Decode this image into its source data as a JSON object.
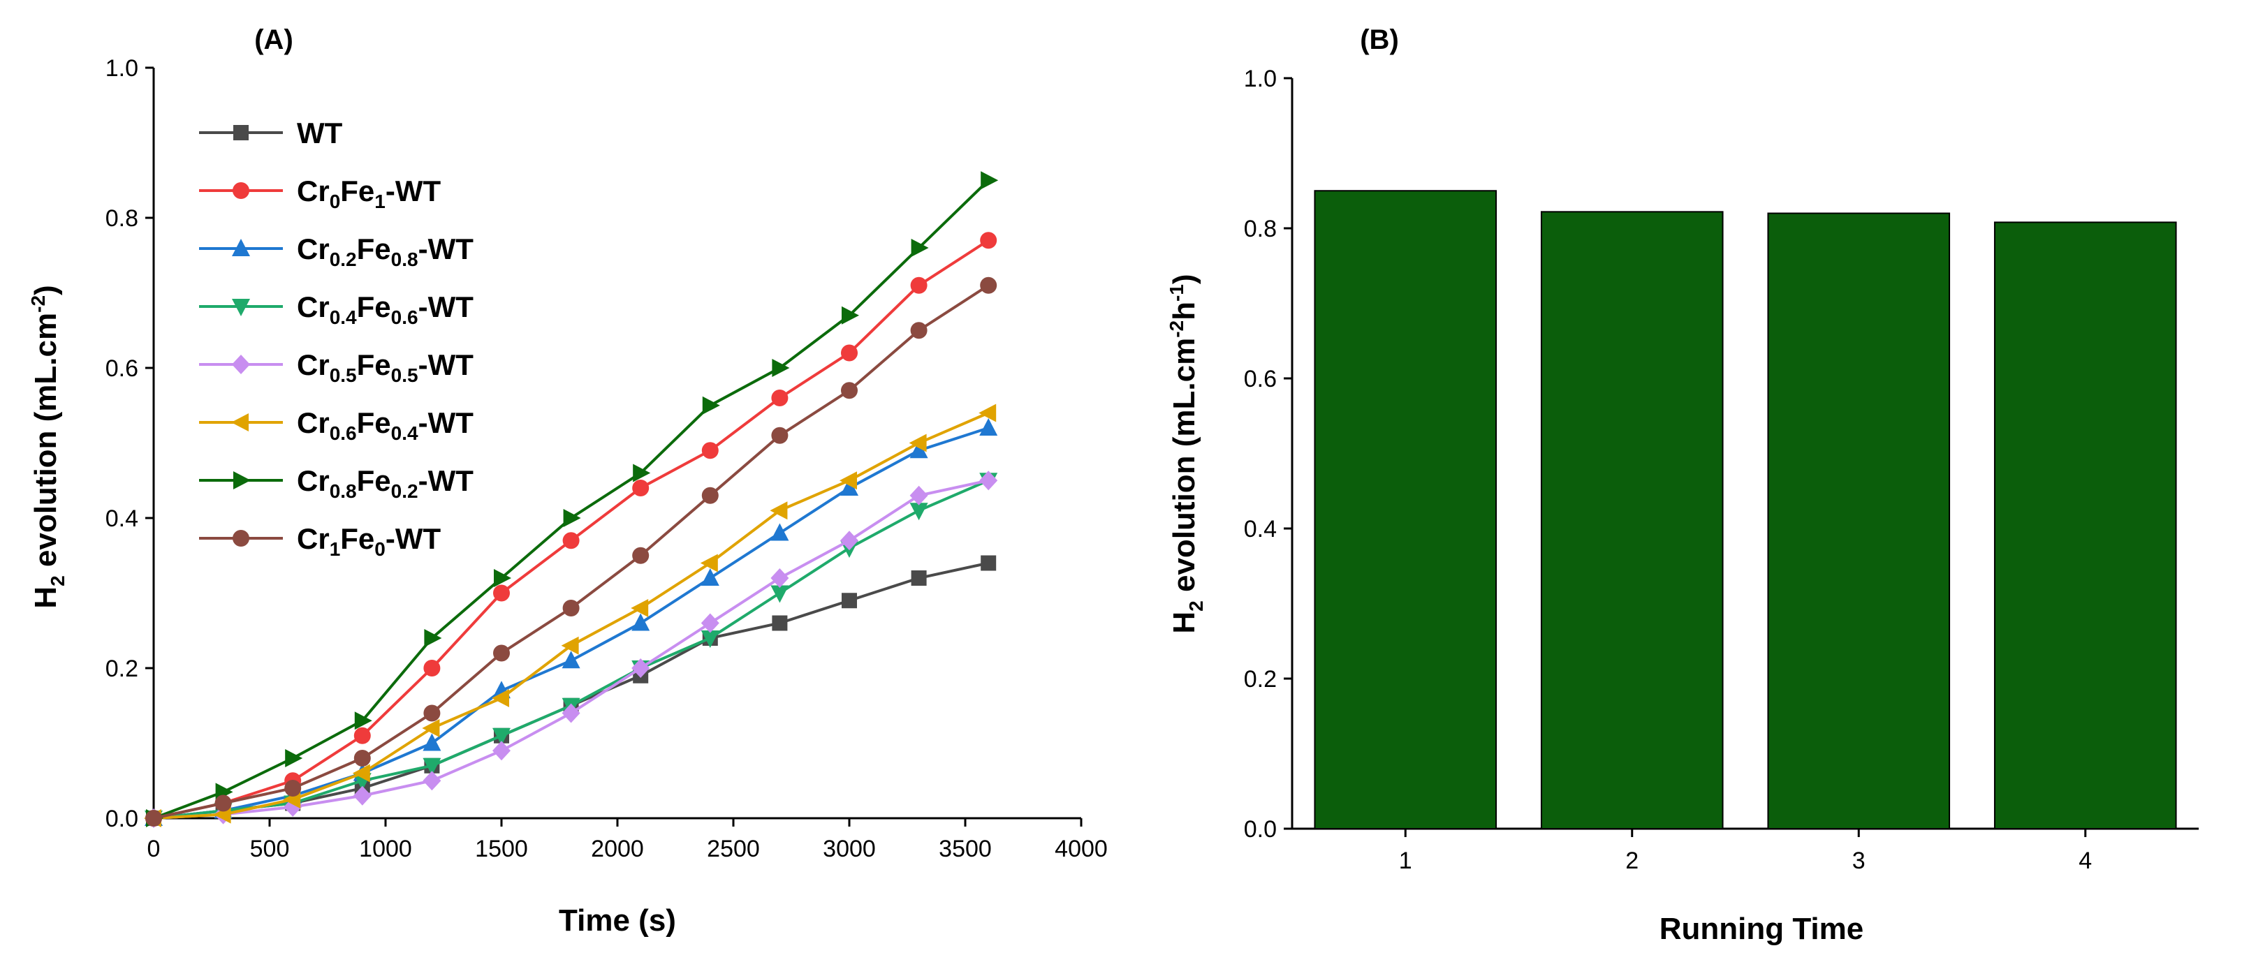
{
  "chart_data": [
    {
      "panel": "(A)",
      "type": "line",
      "xlabel": "Time (s)",
      "ylabel": {
        "base": "H",
        "sub": "2",
        "rest": " evolution (mL.cm",
        "sup": "-2",
        "close": ")"
      },
      "xlim": [
        0,
        4000
      ],
      "ylim": [
        0,
        1.0
      ],
      "xticks": [
        0,
        500,
        1000,
        1500,
        2000,
        2500,
        3000,
        3500,
        4000
      ],
      "yticks": [
        0.0,
        0.2,
        0.4,
        0.6,
        0.8,
        1.0
      ],
      "ytick_labels": [
        "0.0",
        "0.2",
        "0.4",
        "0.6",
        "0.8",
        "1.0"
      ],
      "x": [
        0,
        300,
        600,
        900,
        1200,
        1500,
        1800,
        2100,
        2400,
        2700,
        3000,
        3300,
        3600
      ],
      "series": [
        {
          "name": "WT",
          "parts": [
            [
              "WT",
              ""
            ]
          ],
          "color": "#4a4a4a",
          "marker": "square",
          "values": [
            0,
            0.01,
            0.02,
            0.04,
            0.07,
            0.11,
            0.15,
            0.19,
            0.24,
            0.26,
            0.29,
            0.32,
            0.34
          ]
        },
        {
          "name": "Cr0Fe1-WT",
          "parts": [
            [
              "Cr",
              "0"
            ],
            [
              "Fe",
              "1"
            ],
            [
              "-WT",
              ""
            ]
          ],
          "color": "#ef3b3b",
          "marker": "circle",
          "values": [
            0,
            0.02,
            0.05,
            0.11,
            0.2,
            0.3,
            0.37,
            0.44,
            0.49,
            0.56,
            0.62,
            0.71,
            0.77
          ]
        },
        {
          "name": "Cr0.2Fe0.8-WT",
          "parts": [
            [
              "Cr",
              "0.2"
            ],
            [
              "Fe",
              "0.8"
            ],
            [
              "-WT",
              ""
            ]
          ],
          "color": "#1f78d1",
          "marker": "triangle-up",
          "values": [
            0,
            0.01,
            0.03,
            0.06,
            0.1,
            0.17,
            0.21,
            0.26,
            0.32,
            0.38,
            0.44,
            0.49,
            0.52
          ]
        },
        {
          "name": "Cr0.4Fe0.6-WT",
          "parts": [
            [
              "Cr",
              "0.4"
            ],
            [
              "Fe",
              "0.6"
            ],
            [
              "-WT",
              ""
            ]
          ],
          "color": "#1faa6b",
          "marker": "triangle-down",
          "values": [
            0,
            0.01,
            0.02,
            0.05,
            0.07,
            0.11,
            0.15,
            0.2,
            0.24,
            0.3,
            0.36,
            0.41,
            0.45
          ]
        },
        {
          "name": "Cr0.5Fe0.5-WT",
          "parts": [
            [
              "Cr",
              "0.5"
            ],
            [
              "Fe",
              "0.5"
            ],
            [
              "-WT",
              ""
            ]
          ],
          "color": "#c88ef0",
          "marker": "diamond",
          "values": [
            0,
            0.005,
            0.015,
            0.03,
            0.05,
            0.09,
            0.14,
            0.2,
            0.26,
            0.32,
            0.37,
            0.43,
            0.45
          ]
        },
        {
          "name": "Cr0.6Fe0.4-WT",
          "parts": [
            [
              "Cr",
              "0.6"
            ],
            [
              "Fe",
              "0.4"
            ],
            [
              "-WT",
              ""
            ]
          ],
          "color": "#e0a300",
          "marker": "triangle-left",
          "values": [
            0,
            0.005,
            0.025,
            0.06,
            0.12,
            0.16,
            0.23,
            0.28,
            0.34,
            0.41,
            0.45,
            0.5,
            0.54
          ]
        },
        {
          "name": "Cr0.8Fe0.2-WT",
          "parts": [
            [
              "Cr",
              "0.8"
            ],
            [
              "Fe",
              "0.2"
            ],
            [
              "-WT",
              ""
            ]
          ],
          "color": "#0b6b0b",
          "marker": "triangle-right",
          "values": [
            0,
            0.035,
            0.08,
            0.13,
            0.24,
            0.32,
            0.4,
            0.46,
            0.55,
            0.6,
            0.67,
            0.76,
            0.85
          ]
        },
        {
          "name": "Cr1Fe0-WT",
          "parts": [
            [
              "Cr",
              "1"
            ],
            [
              "Fe",
              "0"
            ],
            [
              "-WT",
              ""
            ]
          ],
          "color": "#8b4a40",
          "marker": "circle",
          "values": [
            0,
            0.02,
            0.04,
            0.08,
            0.14,
            0.22,
            0.28,
            0.35,
            0.43,
            0.51,
            0.57,
            0.65,
            0.71
          ]
        }
      ]
    },
    {
      "panel": "(B)",
      "type": "bar",
      "xlabel": "Running Time",
      "ylabel": {
        "base": "H",
        "sub": "2",
        "rest": " evolution (mL.cm",
        "sup": "-2",
        "mid": "h",
        "sup2": "-1",
        "close": ")"
      },
      "ylim": [
        0,
        1.0
      ],
      "yticks": [
        0.0,
        0.2,
        0.4,
        0.6,
        0.8,
        1.0
      ],
      "ytick_labels": [
        "0.0",
        "0.2",
        "0.4",
        "0.6",
        "0.8",
        "1.0"
      ],
      "categories": [
        "1",
        "2",
        "3",
        "4"
      ],
      "values": [
        0.85,
        0.822,
        0.82,
        0.808
      ],
      "bar_color": "#0b5e0b"
    }
  ]
}
